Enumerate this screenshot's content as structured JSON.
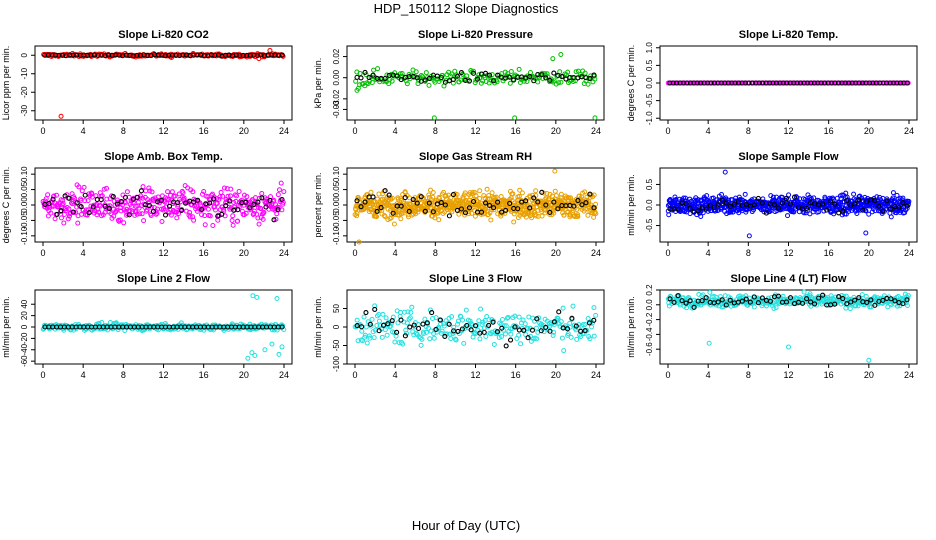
{
  "title": "HDP_150112  Slope Diagnostics",
  "xlabel": "Hour of Day (UTC)",
  "colors": {
    "black_series": "#000000"
  },
  "chart_data": [
    {
      "type": "scatter",
      "title": "Slope Li-820 CO2",
      "ylabel": "Licor ppm per min.",
      "xlim": [
        0,
        24
      ],
      "xticks": [
        0,
        4,
        8,
        12,
        16,
        20,
        24
      ],
      "ylim": [
        -35,
        5
      ],
      "yticks": [
        0,
        -10,
        -20,
        -30
      ],
      "ytick_labels": [
        "0",
        "-10",
        "-20",
        "-30"
      ],
      "color": "#ff0000",
      "center": 0,
      "spread": 0.7,
      "density": 190,
      "outliers": [
        [
          1.8,
          -33
        ],
        [
          22.6,
          2.6
        ],
        [
          21.5,
          -1.8
        ],
        [
          12.8,
          -1.2
        ]
      ],
      "black_center": 0,
      "black_spread": 0.3,
      "black_count": 68
    },
    {
      "type": "scatter",
      "title": "Slope Li-820 Pressure",
      "ylabel": "kPa per min.",
      "xlim": [
        0,
        24
      ],
      "xticks": [
        0,
        4,
        8,
        12,
        16,
        20,
        24
      ],
      "ylim": [
        -0.04,
        0.03
      ],
      "yticks": [
        0.02,
        0.0,
        -0.02,
        -0.03
      ],
      "ytick_labels": [
        "0.02",
        "0.00",
        "-0.02",
        "-0.03"
      ],
      "color": "#00c000",
      "center": 0,
      "spread": 0.006,
      "density": 190,
      "outliers": [
        [
          7.9,
          -0.038
        ],
        [
          15.9,
          -0.038
        ],
        [
          23.9,
          -0.038
        ],
        [
          0.2,
          -0.012
        ],
        [
          20.5,
          0.022
        ],
        [
          19.7,
          0.018
        ]
      ],
      "black_center": 0,
      "black_spread": 0.004,
      "black_count": 60
    },
    {
      "type": "scatter",
      "title": "Slope Li-820 Temp.",
      "ylabel": "degrees C per min.",
      "xlim": [
        0,
        24
      ],
      "xticks": [
        0,
        4,
        8,
        12,
        16,
        20,
        24
      ],
      "ylim": [
        -1.05,
        1.05
      ],
      "yticks": [
        1.0,
        0.5,
        0.0,
        -0.5,
        -1.0
      ],
      "ytick_labels": [
        "1.0",
        "0.5",
        "0.0",
        "-0.5",
        "-1.0"
      ],
      "color": "#ff00ff",
      "center": 0,
      "spread": 0.0,
      "density": 190,
      "outliers": [],
      "black_center": 0,
      "black_spread": 0.0,
      "black_count": 70
    },
    {
      "type": "scatter",
      "title": "Slope Amb. Box Temp.",
      "ylabel": "degrees C per min.",
      "xlim": [
        0,
        24
      ],
      "xticks": [
        0,
        4,
        8,
        12,
        16,
        20,
        24
      ],
      "ylim": [
        -0.12,
        0.12
      ],
      "yticks": [
        0.1,
        0.05,
        0.0,
        -0.05,
        -0.1
      ],
      "ytick_labels": [
        "0.10",
        "0.05",
        "0.00",
        "-0.05",
        "-0.10"
      ],
      "color": "#ff00ff",
      "center": 0,
      "spread": 0.045,
      "density": 420,
      "outliers": [],
      "black_center": 0,
      "black_spread": 0.03,
      "black_count": 60
    },
    {
      "type": "scatter",
      "title": "Slope Gas Stream RH",
      "ylabel": "percent per min.",
      "xlim": [
        0,
        24
      ],
      "xticks": [
        0,
        4,
        8,
        12,
        16,
        20,
        24
      ],
      "ylim": [
        -0.12,
        0.12
      ],
      "yticks": [
        0.1,
        0.05,
        0.0,
        -0.05,
        -0.1
      ],
      "ytick_labels": [
        "0.10",
        "0.05",
        "0.00",
        "-0.05",
        "-0.10"
      ],
      "color": "#e8a000",
      "center": 0,
      "spread": 0.035,
      "density": 700,
      "outliers": [
        [
          0.4,
          -0.12
        ],
        [
          19.9,
          0.11
        ]
      ],
      "black_center": 0,
      "black_spread": 0.035,
      "black_count": 60
    },
    {
      "type": "scatter",
      "title": "Slope Sample Flow",
      "ylabel": "ml/min per min.",
      "xlim": [
        0,
        24
      ],
      "xticks": [
        0,
        4,
        8,
        12,
        16,
        20,
        24
      ],
      "ylim": [
        -0.9,
        0.9
      ],
      "yticks": [
        0.5,
        0.0,
        -0.5
      ],
      "ytick_labels": [
        "0.5",
        "0.0",
        "-0.5"
      ],
      "color": "#0000ff",
      "center": 0,
      "spread": 0.18,
      "density": 700,
      "outliers": [
        [
          5.7,
          0.8
        ],
        [
          8.1,
          -0.75
        ],
        [
          19.7,
          -0.68
        ]
      ],
      "black_center": 0,
      "black_spread": 0.15,
      "black_count": 60
    },
    {
      "type": "scatter",
      "title": "Slope Line 2 Flow",
      "ylabel": "ml/min per min.",
      "xlim": [
        0,
        24
      ],
      "xticks": [
        0,
        4,
        8,
        12,
        16,
        20,
        24
      ],
      "ylim": [
        -65,
        65
      ],
      "yticks": [
        40,
        20,
        0,
        -20,
        -40,
        -60
      ],
      "ytick_labels": [
        "40",
        "20",
        "0",
        "-20",
        "-40",
        "-60"
      ],
      "color": "#22e0e0",
      "center": 0,
      "spread": 5,
      "density": 320,
      "outliers": [
        [
          20.4,
          -55
        ],
        [
          20.8,
          -45
        ],
        [
          21.1,
          -50
        ],
        [
          20.9,
          55
        ],
        [
          21.3,
          52
        ],
        [
          23.3,
          50
        ],
        [
          23.5,
          -48
        ],
        [
          23.8,
          -35
        ],
        [
          22.8,
          -30
        ],
        [
          22.1,
          -40
        ]
      ],
      "black_center": 0,
      "black_spread": 0,
      "black_count": 62
    },
    {
      "type": "scatter",
      "title": "Slope Line 3 Flow",
      "ylabel": "ml/min per min.",
      "xlim": [
        0,
        24
      ],
      "xticks": [
        0,
        4,
        8,
        12,
        16,
        20,
        24
      ],
      "ylim": [
        -100,
        100
      ],
      "yticks": [
        50,
        0,
        -50,
        -100
      ],
      "ytick_labels": [
        "50",
        "0",
        "-50",
        "-100"
      ],
      "color": "#22e0e0",
      "center": 0,
      "spread": 40,
      "density": 260,
      "outliers": [],
      "black_center": 0,
      "black_spread": 40,
      "black_count": 55
    },
    {
      "type": "scatter",
      "title": "Slope Line 4 (LT) Flow",
      "ylabel": "ml/min per min.",
      "xlim": [
        0,
        24
      ],
      "xticks": [
        0,
        4,
        8,
        12,
        16,
        20,
        24
      ],
      "ylim": [
        -0.8,
        0.2
      ],
      "yticks": [
        0.2,
        0.0,
        -0.2,
        -0.4,
        -0.6
      ],
      "ytick_labels": [
        "0.2",
        "0.0",
        "-0.2",
        "-0.4",
        "-0.6"
      ],
      "color": "#22e0e0",
      "center": 0.05,
      "spread": 0.07,
      "density": 380,
      "outliers": [
        [
          4.1,
          -0.52
        ],
        [
          12.0,
          -0.57
        ],
        [
          20.0,
          -0.75
        ]
      ],
      "black_center": 0.06,
      "black_spread": 0.06,
      "black_count": 60
    }
  ]
}
